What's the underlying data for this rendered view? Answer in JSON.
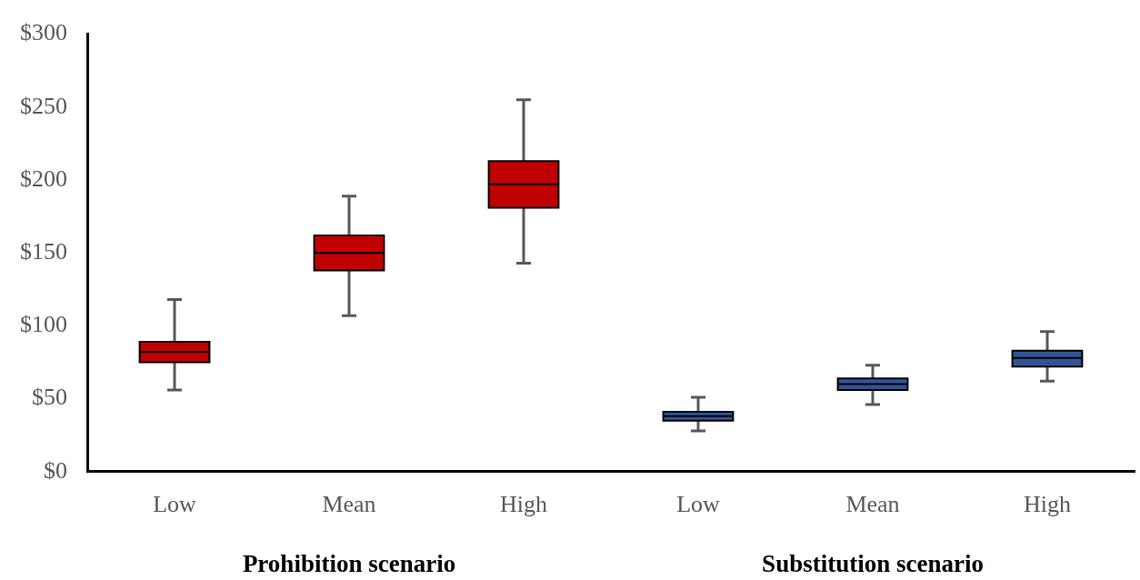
{
  "chart_data": {
    "type": "box",
    "categories": [
      "Low",
      "Mean",
      "High",
      "Low",
      "Mean",
      "High"
    ],
    "series": [
      {
        "color": "#c00000",
        "boxes": [
          {
            "low": 56,
            "q1": 75,
            "median": 82,
            "q3": 89,
            "high": 118
          },
          {
            "low": 107,
            "q1": 138,
            "median": 150,
            "q3": 162,
            "high": 189
          },
          {
            "low": 143,
            "q1": 181,
            "median": 197,
            "q3": 213,
            "high": 255
          },
          null,
          null,
          null
        ]
      },
      {
        "color": "#2f5597",
        "boxes": [
          null,
          null,
          null,
          {
            "low": 28,
            "q1": 35,
            "median": 38,
            "q3": 41,
            "high": 51
          },
          {
            "low": 46,
            "q1": 56,
            "median": 60,
            "q3": 64,
            "high": 73
          },
          {
            "low": 62,
            "q1": 72,
            "median": 78,
            "q3": 83,
            "high": 96
          }
        ]
      }
    ],
    "ylim": [
      0,
      300
    ],
    "yticks": [
      {
        "value": 0,
        "label": "$0"
      },
      {
        "value": 50,
        "label": "$50"
      },
      {
        "value": 100,
        "label": "$100"
      },
      {
        "value": 150,
        "label": "$150"
      },
      {
        "value": 200,
        "label": "$200"
      },
      {
        "value": 250,
        "label": "$250"
      },
      {
        "value": 300,
        "label": "$300"
      }
    ],
    "annotations": [
      "Prohibition scenario",
      "Substitution scenario"
    ],
    "grid": false,
    "legend": false
  }
}
